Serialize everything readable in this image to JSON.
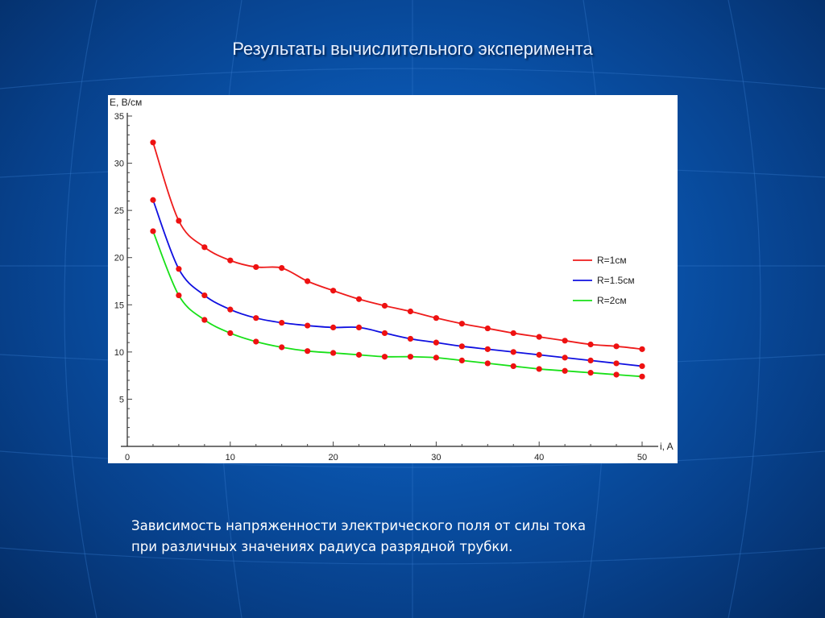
{
  "slide": {
    "title": "Результаты вычислительного эксперимента",
    "caption_lines": [
      "Зависимость напряженности электрического поля от силы тока",
      "при различных значениях радиуса разрядной трубки."
    ]
  },
  "chart_data": {
    "type": "line",
    "title": "",
    "xlabel": "i, A",
    "ylabel": "E, В/см",
    "xlim": [
      0,
      50
    ],
    "ylim": [
      0,
      35
    ],
    "x_ticks": [
      0,
      10,
      20,
      30,
      40,
      50
    ],
    "y_ticks": [
      5,
      10,
      15,
      20,
      25,
      30,
      35
    ],
    "grid": false,
    "legend_position": "right-center",
    "marker_color": "#ee1111",
    "x": [
      2.5,
      5,
      7.5,
      10,
      12.5,
      15,
      17.5,
      20,
      22.5,
      25,
      27.5,
      30,
      32.5,
      35,
      37.5,
      40,
      42.5,
      45,
      47.5,
      50
    ],
    "series": [
      {
        "name": "R=1см",
        "color": "#ee1c1c",
        "values": [
          32.2,
          23.9,
          21.1,
          19.7,
          19.0,
          18.9,
          17.5,
          16.5,
          15.6,
          14.9,
          14.3,
          13.6,
          13.0,
          12.5,
          12.0,
          11.6,
          11.2,
          10.8,
          10.6,
          10.3
        ]
      },
      {
        "name": "R=1.5см",
        "color": "#1010e0",
        "values": [
          26.1,
          18.8,
          16.0,
          14.5,
          13.6,
          13.1,
          12.8,
          12.6,
          12.6,
          12.0,
          11.4,
          11.0,
          10.6,
          10.3,
          10.0,
          9.7,
          9.4,
          9.1,
          8.8,
          8.5
        ]
      },
      {
        "name": "R=2см",
        "color": "#18e018",
        "values": [
          22.8,
          16.0,
          13.4,
          12.0,
          11.1,
          10.5,
          10.1,
          9.9,
          9.7,
          9.5,
          9.5,
          9.4,
          9.1,
          8.8,
          8.5,
          8.2,
          8.0,
          7.8,
          7.6,
          7.4
        ]
      }
    ]
  }
}
